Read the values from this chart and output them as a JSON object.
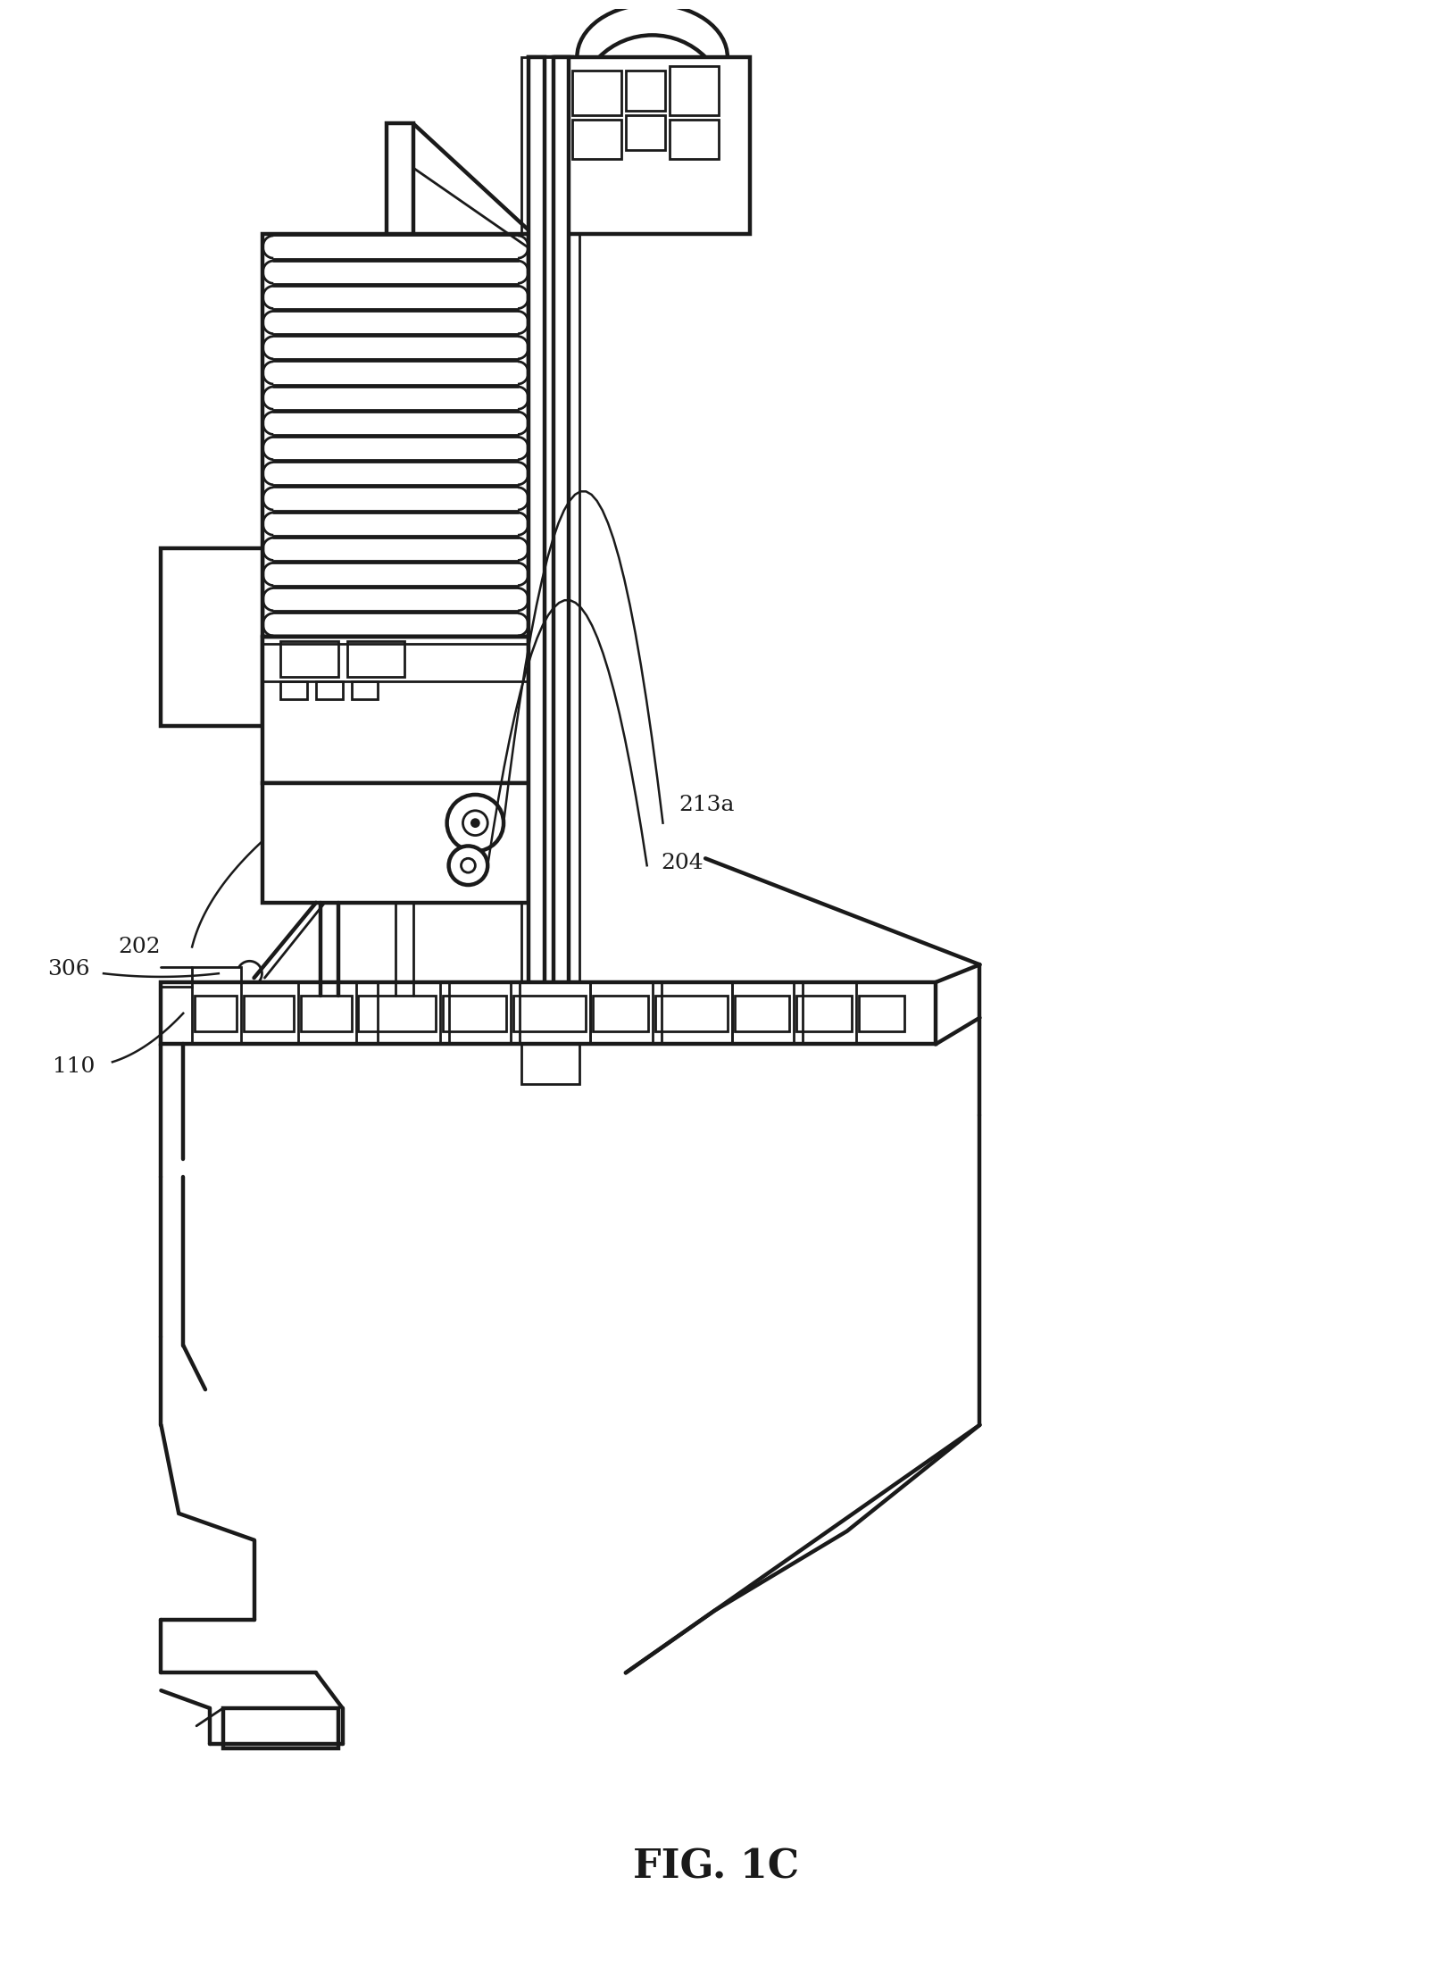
{
  "title": "FIG. 1C",
  "title_fontsize": 32,
  "background_color": "#ffffff",
  "line_color": "#1a1a1a",
  "line_width": 2.0,
  "label_fontsize": 18,
  "fig_width": 16.04,
  "fig_height": 22.23
}
